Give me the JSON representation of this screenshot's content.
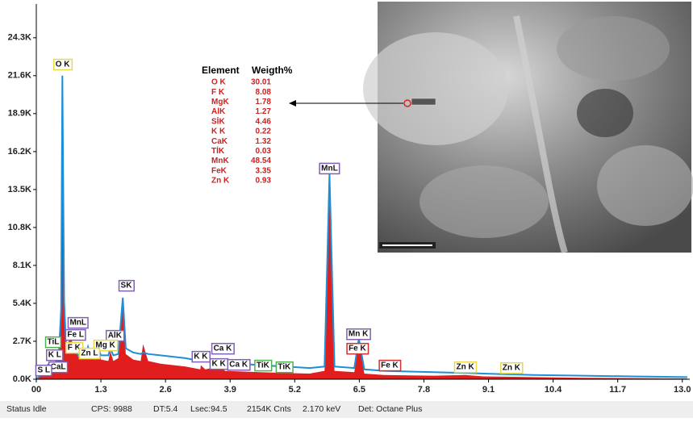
{
  "chart_data": {
    "type": "line",
    "x": [
      0,
      0.1,
      0.18,
      0.26,
      0.35,
      0.45,
      0.5,
      0.525,
      0.56,
      0.6,
      0.68,
      0.7,
      0.76,
      0.85,
      1.0,
      1.04,
      1.1,
      1.2,
      1.25,
      1.3,
      1.45,
      1.49,
      1.55,
      1.65,
      1.74,
      1.8,
      1.95,
      2.1,
      2.15,
      2.25,
      2.5,
      3.0,
      3.3,
      3.31,
      3.4,
      3.69,
      3.8,
      4.5,
      5.0,
      5.5,
      5.8,
      5.9,
      6.0,
      6.4,
      6.49,
      6.6,
      7.0,
      8.0,
      8.63,
      9.0,
      10.0,
      11.0,
      12.0,
      13.1
    ],
    "series": [
      {
        "color": "#e01e1e",
        "fill": true,
        "values": [
          0,
          400,
          900,
          1200,
          900,
          2000,
          6000,
          21700,
          6000,
          2500,
          2800,
          3000,
          2000,
          1600,
          1500,
          2500,
          1500,
          1400,
          2300,
          1400,
          1300,
          2000,
          1300,
          1500,
          5900,
          1800,
          1400,
          1300,
          2500,
          1300,
          1100,
          900,
          700,
          1000,
          700,
          900,
          600,
          500,
          450,
          400,
          600,
          14500,
          600,
          500,
          2800,
          400,
          300,
          250,
          300,
          200,
          150,
          100,
          80,
          50
        ]
      },
      {
        "color": "#1e8fd6",
        "fill": false,
        "values": [
          0,
          300,
          600,
          700,
          700,
          1500,
          5000,
          21600,
          5500,
          2300,
          2500,
          2600,
          2000,
          1700,
          1700,
          2300,
          1700,
          1700,
          2200,
          1700,
          1700,
          2200,
          1700,
          1800,
          5800,
          2200,
          1900,
          1800,
          1900,
          1800,
          1700,
          1500,
          1300,
          1600,
          1300,
          1400,
          1200,
          1000,
          900,
          800,
          900,
          14600,
          900,
          800,
          2900,
          700,
          600,
          500,
          450,
          400,
          300,
          250,
          200,
          150
        ]
      }
    ],
    "xlim": [
      0,
      13.15
    ],
    "ylim": [
      0,
      26700
    ],
    "xticks": [
      {
        "value": 0,
        "label": "00"
      },
      1.3,
      2.6,
      3.9,
      5.2,
      6.5,
      7.8,
      9.1,
      10.4,
      11.7,
      {
        "value": 13,
        "label": "13.0"
      }
    ],
    "yticks": [
      {
        "value": 0,
        "label": "0.0K"
      },
      {
        "value": 2700,
        "label": "2.7K"
      },
      {
        "value": 5400,
        "label": "5.4K"
      },
      {
        "value": 8100,
        "label": "8.1K"
      },
      {
        "value": 10800,
        "label": "10.8K"
      },
      {
        "value": 13500,
        "label": "13.5K"
      },
      {
        "value": 16200,
        "label": "16.2K"
      },
      {
        "value": 18900,
        "label": "18.9K"
      },
      {
        "value": 21600,
        "label": "21.6K"
      },
      {
        "value": 24300,
        "label": "24.3K"
      }
    ],
    "annotations": [
      {
        "text": "O K",
        "x": 0.53,
        "y": 22400,
        "color": "#e8d84a"
      },
      {
        "text": "MnL",
        "x": 5.9,
        "y": 15000,
        "color": "#8060b0"
      },
      {
        "text": "SK",
        "x": 1.81,
        "y": 6660,
        "color": "#8060b0"
      },
      {
        "text": "MnL",
        "x": 0.84,
        "y": 4020,
        "color": "#8060b0"
      },
      {
        "text": "Fe L",
        "x": 0.79,
        "y": 3160,
        "color": "#8060b0"
      },
      {
        "text": "AlK",
        "x": 1.58,
        "y": 3100,
        "color": "#8060b0"
      },
      {
        "text": "F K",
        "x": 0.76,
        "y": 2240,
        "color": "#e8d84a"
      },
      {
        "text": "Mg K",
        "x": 1.39,
        "y": 2410,
        "color": "#e8d84a"
      },
      {
        "text": "Zn L",
        "x": 1.07,
        "y": 1840,
        "color": "#e8d84a"
      },
      {
        "text": "TiL",
        "x": 0.34,
        "y": 2640,
        "color": "#50b050"
      },
      {
        "text": "K L",
        "x": 0.37,
        "y": 1720,
        "color": "#8060b0"
      },
      {
        "text": "CaL",
        "x": 0.44,
        "y": 860,
        "color": "#8060b0"
      },
      {
        "text": "S L",
        "x": 0.15,
        "y": 630,
        "color": "#8060b0"
      },
      {
        "text": "K K",
        "x": 3.31,
        "y": 1610,
        "color": "#8060b0"
      },
      {
        "text": "Ca K",
        "x": 3.75,
        "y": 2180,
        "color": "#8060b0"
      },
      {
        "text": "K K",
        "x": 3.67,
        "y": 1090,
        "color": "#8060b0"
      },
      {
        "text": "Ca K",
        "x": 4.07,
        "y": 1030,
        "color": "#8060b0"
      },
      {
        "text": "TiK",
        "x": 4.56,
        "y": 980,
        "color": "#50b050"
      },
      {
        "text": "TiK",
        "x": 4.99,
        "y": 860,
        "color": "#50b050"
      },
      {
        "text": "Mn K",
        "x": 6.48,
        "y": 3210,
        "color": "#8060b0"
      },
      {
        "text": "Fe K",
        "x": 6.46,
        "y": 2180,
        "color": "#d03030"
      },
      {
        "text": "Fe K",
        "x": 7.11,
        "y": 980,
        "color": "#d03030"
      },
      {
        "text": "Zn K",
        "x": 8.63,
        "y": 860,
        "color": "#e8d84a"
      },
      {
        "text": "Zn K",
        "x": 9.56,
        "y": 800,
        "color": "#e8d84a"
      }
    ]
  },
  "table": {
    "header": [
      "Element",
      "Weigth%"
    ],
    "rows": [
      [
        "O K",
        "30.01"
      ],
      [
        "F K",
        "8.08"
      ],
      [
        "MgK",
        "1.78"
      ],
      [
        "AlK",
        "1.27"
      ],
      [
        "SİK",
        "4.46"
      ],
      [
        "K K",
        "0.22"
      ],
      [
        "CaK",
        "1.32"
      ],
      [
        "TİK",
        "0.03"
      ],
      [
        "MnK",
        "48.54"
      ],
      [
        "FeK",
        "3.35"
      ],
      [
        "Zn K",
        "0.93"
      ]
    ]
  },
  "status_bar": [
    "Status Idle",
    "CPS: 9988",
    "DT:5.4",
    "Lsec:94.5",
    "2154K Cnts",
    "2.170 keV",
    "Det: Octane Plus"
  ]
}
